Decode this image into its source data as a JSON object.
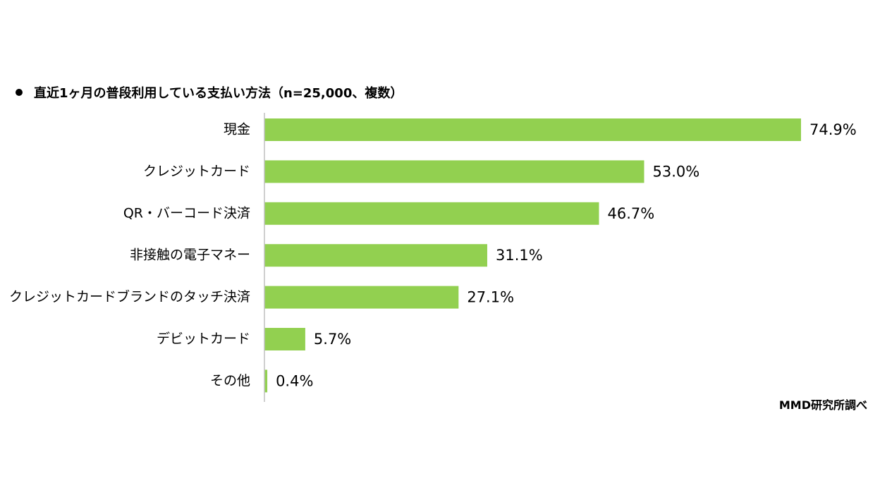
{
  "header": {
    "title": "直近1ヶ月の普段利用している支払い方法（n=25,000、複数）"
  },
  "source": "MMD研究所調べ",
  "chart_data": {
    "type": "bar",
    "orientation": "horizontal",
    "title": "直近1ヶ月の普段利用している支払い方法（n=25,000、複数）",
    "categories": [
      "現金",
      "クレジットカード",
      "QR・バーコード決済",
      "非接触の電子マネー",
      "クレジットカードブランドのタッチ決済",
      "デビットカード",
      "その他"
    ],
    "values": [
      74.9,
      53.0,
      46.7,
      31.1,
      27.1,
      5.7,
      0.4
    ],
    "data_labels": [
      "74.9%",
      "53.0%",
      "46.7%",
      "31.1%",
      "27.1%",
      "5.7%",
      "0.4%"
    ],
    "xlim": [
      0,
      100
    ],
    "bar_color": "#92d050",
    "axis_color": "#bfbfbf",
    "grid": false,
    "legend": "none"
  }
}
